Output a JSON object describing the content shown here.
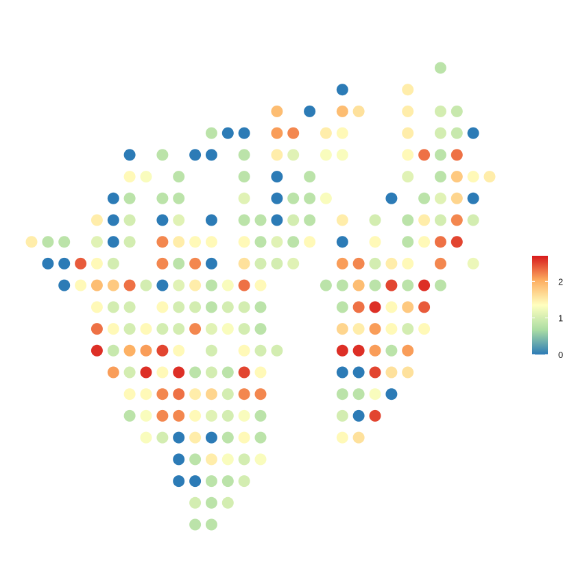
{
  "chart_data": {
    "type": "scatter",
    "title": "",
    "xlabel": "",
    "ylabel": "",
    "grid": false,
    "legend_position": "right",
    "color_scale": {
      "name": "",
      "min": 0,
      "max": 2.7,
      "ticks": [
        0,
        1,
        2
      ],
      "tick_labels": [
        "0",
        "1",
        "2"
      ],
      "stops": [
        "#2C7BB6",
        "#ABDDA4",
        "#FFFFBF",
        "#FDAE61",
        "#D7191C"
      ]
    },
    "xlim": [
      -6,
      26
    ],
    "ylim": [
      -13,
      8.5
    ],
    "points": [
      [
        22,
        7.8,
        0.8
      ],
      [
        16,
        6.8,
        0
      ],
      [
        20,
        6.8,
        1.5
      ],
      [
        12,
        5.8,
        1.9
      ],
      [
        14,
        5.8,
        0
      ],
      [
        16,
        5.8,
        1.9
      ],
      [
        17,
        5.8,
        1.6
      ],
      [
        20,
        5.8,
        1.5
      ],
      [
        22,
        5.8,
        1.0
      ],
      [
        23,
        5.8,
        0.9
      ],
      [
        8,
        4.8,
        0.8
      ],
      [
        9,
        4.8,
        0
      ],
      [
        10,
        4.8,
        0
      ],
      [
        12,
        4.8,
        2.1
      ],
      [
        13,
        4.8,
        2.2
      ],
      [
        15,
        4.8,
        1.5
      ],
      [
        16,
        4.8,
        1.4
      ],
      [
        20,
        4.8,
        1.5
      ],
      [
        22,
        4.8,
        1.0
      ],
      [
        23,
        4.8,
        0.9
      ],
      [
        24,
        4.8,
        0
      ],
      [
        3,
        3.8,
        0
      ],
      [
        5,
        3.8,
        0.8
      ],
      [
        7,
        3.8,
        0
      ],
      [
        8,
        3.8,
        0
      ],
      [
        10,
        3.8,
        0.8
      ],
      [
        12,
        3.8,
        1.5
      ],
      [
        13,
        3.8,
        1.1
      ],
      [
        15,
        3.8,
        1.3
      ],
      [
        16,
        3.8,
        1.3
      ],
      [
        20,
        3.8,
        1.4
      ],
      [
        21,
        3.8,
        2.3
      ],
      [
        22,
        3.8,
        0.8
      ],
      [
        23,
        3.8,
        2.3
      ],
      [
        3,
        2.8,
        1.4
      ],
      [
        4,
        2.8,
        1.3
      ],
      [
        6,
        2.8,
        0.8
      ],
      [
        10,
        2.8,
        0.8
      ],
      [
        12,
        2.8,
        0
      ],
      [
        14,
        2.8,
        0.8
      ],
      [
        20,
        2.8,
        1.1
      ],
      [
        22,
        2.8,
        0.8
      ],
      [
        23,
        2.8,
        1.8
      ],
      [
        24,
        2.8,
        1.4
      ],
      [
        25,
        2.8,
        1.5
      ],
      [
        2,
        1.8,
        0
      ],
      [
        3,
        1.8,
        0.8
      ],
      [
        5,
        1.8,
        0.8
      ],
      [
        6,
        1.8,
        0.8
      ],
      [
        10,
        1.8,
        1.1
      ],
      [
        12,
        1.8,
        0
      ],
      [
        13,
        1.8,
        0.8
      ],
      [
        14,
        1.8,
        0.8
      ],
      [
        15,
        1.8,
        1.3
      ],
      [
        19,
        1.8,
        0
      ],
      [
        21,
        1.8,
        0.8
      ],
      [
        22,
        1.8,
        1.1
      ],
      [
        23,
        1.8,
        1.7
      ],
      [
        24,
        1.8,
        0
      ],
      [
        1,
        0.8,
        1.5
      ],
      [
        2,
        0.8,
        0
      ],
      [
        3,
        0.8,
        1.0
      ],
      [
        5,
        0.8,
        0
      ],
      [
        6,
        0.8,
        1.1
      ],
      [
        8,
        0.8,
        0
      ],
      [
        10,
        0.8,
        0.8
      ],
      [
        11,
        0.8,
        0.8
      ],
      [
        12,
        0.8,
        0
      ],
      [
        13,
        0.8,
        1.0
      ],
      [
        14,
        0.8,
        0.8
      ],
      [
        16,
        0.8,
        1.5
      ],
      [
        18,
        0.8,
        1.0
      ],
      [
        20,
        0.8,
        0.8
      ],
      [
        21,
        0.8,
        1.5
      ],
      [
        22,
        0.8,
        1.0
      ],
      [
        23,
        0.8,
        2.2
      ],
      [
        24,
        0.8,
        1.0
      ],
      [
        -3,
        -0.2,
        1.5
      ],
      [
        -2,
        -0.2,
        0.8
      ],
      [
        -1,
        -0.2,
        0.8
      ],
      [
        1,
        -0.2,
        1.1
      ],
      [
        2,
        -0.2,
        0
      ],
      [
        3,
        -0.2,
        1.0
      ],
      [
        5,
        -0.2,
        2.2
      ],
      [
        6,
        -0.2,
        1.5
      ],
      [
        7,
        -0.2,
        1.4
      ],
      [
        8,
        -0.2,
        1.4
      ],
      [
        10,
        -0.2,
        1.4
      ],
      [
        11,
        -0.2,
        0.8
      ],
      [
        12,
        -0.2,
        1.1
      ],
      [
        13,
        -0.2,
        0.8
      ],
      [
        14,
        -0.2,
        1.4
      ],
      [
        16,
        -0.2,
        0
      ],
      [
        18,
        -0.2,
        1.4
      ],
      [
        20,
        -0.2,
        0.8
      ],
      [
        21,
        -0.2,
        1.4
      ],
      [
        22,
        -0.2,
        2.3
      ],
      [
        23,
        -0.2,
        2.5
      ],
      [
        -2,
        -1.2,
        0
      ],
      [
        -1,
        -1.2,
        0
      ],
      [
        0,
        -1.2,
        2.4
      ],
      [
        1,
        -1.2,
        1.4
      ],
      [
        2,
        -1.2,
        1.0
      ],
      [
        5,
        -1.2,
        2.2
      ],
      [
        6,
        -1.2,
        0.8
      ],
      [
        7,
        -1.2,
        2.2
      ],
      [
        8,
        -1.2,
        0
      ],
      [
        10,
        -1.2,
        1.6
      ],
      [
        11,
        -1.2,
        1.0
      ],
      [
        12,
        -1.2,
        1.0
      ],
      [
        13,
        -1.2,
        1.1
      ],
      [
        16,
        -1.2,
        2.1
      ],
      [
        17,
        -1.2,
        2.2
      ],
      [
        18,
        -1.2,
        1.0
      ],
      [
        19,
        -1.2,
        1.5
      ],
      [
        20,
        -1.2,
        1.4
      ],
      [
        22,
        -1.2,
        2.2
      ],
      [
        24,
        -1.2,
        1.2
      ],
      [
        -1,
        -2.2,
        0
      ],
      [
        0,
        -2.2,
        1.4
      ],
      [
        1,
        -2.2,
        1.9
      ],
      [
        2,
        -2.2,
        1.8
      ],
      [
        3,
        -2.2,
        2.3
      ],
      [
        4,
        -2.2,
        1.0
      ],
      [
        5,
        -2.2,
        0
      ],
      [
        6,
        -2.2,
        1.1
      ],
      [
        7,
        -2.2,
        1.5
      ],
      [
        8,
        -2.2,
        0.8
      ],
      [
        9,
        -2.2,
        1.3
      ],
      [
        10,
        -2.2,
        2.3
      ],
      [
        11,
        -2.2,
        1.4
      ],
      [
        15,
        -2.2,
        0.8
      ],
      [
        16,
        -2.2,
        0.8
      ],
      [
        17,
        -2.2,
        1.9
      ],
      [
        18,
        -2.2,
        0.8
      ],
      [
        19,
        -2.2,
        2.5
      ],
      [
        20,
        -2.2,
        0.8
      ],
      [
        21,
        -2.2,
        2.6
      ],
      [
        22,
        -2.2,
        0.8
      ],
      [
        1,
        -3.2,
        1.4
      ],
      [
        2,
        -3.2,
        1.0
      ],
      [
        3,
        -3.2,
        1.0
      ],
      [
        5,
        -3.2,
        1.4
      ],
      [
        6,
        -3.2,
        1.0
      ],
      [
        7,
        -3.2,
        1.0
      ],
      [
        8,
        -3.2,
        0.8
      ],
      [
        9,
        -3.2,
        1.0
      ],
      [
        10,
        -3.2,
        1.0
      ],
      [
        11,
        -3.2,
        0.8
      ],
      [
        16,
        -3.2,
        0.8
      ],
      [
        17,
        -3.2,
        2.3
      ],
      [
        18,
        -3.2,
        2.6
      ],
      [
        19,
        -3.2,
        1.4
      ],
      [
        20,
        -3.2,
        1.8
      ],
      [
        21,
        -3.2,
        2.4
      ],
      [
        1,
        -4.2,
        2.3
      ],
      [
        2,
        -4.2,
        1.4
      ],
      [
        3,
        -4.2,
        1.0
      ],
      [
        4,
        -4.2,
        1.4
      ],
      [
        5,
        -4.2,
        1.0
      ],
      [
        6,
        -4.2,
        1.0
      ],
      [
        7,
        -4.2,
        2.2
      ],
      [
        8,
        -4.2,
        1.1
      ],
      [
        9,
        -4.2,
        1.3
      ],
      [
        10,
        -4.2,
        1.0
      ],
      [
        11,
        -4.2,
        0.8
      ],
      [
        16,
        -4.2,
        1.7
      ],
      [
        17,
        -4.2,
        1.5
      ],
      [
        18,
        -4.2,
        2.1
      ],
      [
        19,
        -4.2,
        1.4
      ],
      [
        20,
        -4.2,
        1.0
      ],
      [
        21,
        -4.2,
        1.4
      ],
      [
        1,
        -5.2,
        2.6
      ],
      [
        2,
        -5.2,
        0.9
      ],
      [
        3,
        -5.2,
        2.0
      ],
      [
        4,
        -5.2,
        2.1
      ],
      [
        5,
        -5.2,
        2.5
      ],
      [
        6,
        -5.2,
        1.4
      ],
      [
        8,
        -5.2,
        1.0
      ],
      [
        10,
        -5.2,
        1.4
      ],
      [
        11,
        -5.2,
        1.0
      ],
      [
        12,
        -5.2,
        1.0
      ],
      [
        16,
        -5.2,
        2.6
      ],
      [
        17,
        -5.2,
        2.6
      ],
      [
        18,
        -5.2,
        2.1
      ],
      [
        19,
        -5.2,
        0.8
      ],
      [
        20,
        -5.2,
        2.1
      ],
      [
        2,
        -6.2,
        2.1
      ],
      [
        3,
        -6.2,
        1.0
      ],
      [
        4,
        -6.2,
        2.6
      ],
      [
        5,
        -6.2,
        1.4
      ],
      [
        6,
        -6.2,
        2.6
      ],
      [
        7,
        -6.2,
        0.8
      ],
      [
        8,
        -6.2,
        1.0
      ],
      [
        9,
        -6.2,
        0.8
      ],
      [
        10,
        -6.2,
        2.5
      ],
      [
        11,
        -6.2,
        1.4
      ],
      [
        16,
        -6.2,
        0
      ],
      [
        17,
        -6.2,
        0
      ],
      [
        18,
        -6.2,
        2.5
      ],
      [
        19,
        -6.2,
        1.6
      ],
      [
        20,
        -6.2,
        1.6
      ],
      [
        3,
        -7.2,
        1.4
      ],
      [
        4,
        -7.2,
        1.4
      ],
      [
        5,
        -7.2,
        2.2
      ],
      [
        6,
        -7.2,
        2.3
      ],
      [
        7,
        -7.2,
        1.5
      ],
      [
        8,
        -7.2,
        1.7
      ],
      [
        9,
        -7.2,
        1.0
      ],
      [
        10,
        -7.2,
        2.2
      ],
      [
        11,
        -7.2,
        2.2
      ],
      [
        16,
        -7.2,
        0.8
      ],
      [
        17,
        -7.2,
        0.8
      ],
      [
        18,
        -7.2,
        1.3
      ],
      [
        19,
        -7.2,
        0
      ],
      [
        3,
        -8.2,
        0.8
      ],
      [
        4,
        -8.2,
        1.3
      ],
      [
        5,
        -8.2,
        2.2
      ],
      [
        6,
        -8.2,
        2.2
      ],
      [
        7,
        -8.2,
        1.4
      ],
      [
        8,
        -8.2,
        1.1
      ],
      [
        9,
        -8.2,
        1.0
      ],
      [
        10,
        -8.2,
        1.3
      ],
      [
        11,
        -8.2,
        0.8
      ],
      [
        16,
        -8.2,
        1.0
      ],
      [
        17,
        -8.2,
        0
      ],
      [
        18,
        -8.2,
        2.5
      ],
      [
        4,
        -9.2,
        1.3
      ],
      [
        5,
        -9.2,
        1.0
      ],
      [
        6,
        -9.2,
        0
      ],
      [
        7,
        -9.2,
        1.5
      ],
      [
        8,
        -9.2,
        0
      ],
      [
        9,
        -9.2,
        0.8
      ],
      [
        10,
        -9.2,
        1.4
      ],
      [
        11,
        -9.2,
        0.8
      ],
      [
        16,
        -9.2,
        1.4
      ],
      [
        17,
        -9.2,
        1.6
      ],
      [
        6,
        -10.2,
        0
      ],
      [
        7,
        -10.2,
        0.8
      ],
      [
        8,
        -10.2,
        1.5
      ],
      [
        9,
        -10.2,
        1.3
      ],
      [
        10,
        -10.2,
        1.0
      ],
      [
        11,
        -10.2,
        1.3
      ],
      [
        6,
        -11.2,
        0
      ],
      [
        7,
        -11.2,
        0
      ],
      [
        8,
        -11.2,
        0.8
      ],
      [
        9,
        -11.2,
        0.8
      ],
      [
        10,
        -11.2,
        1.0
      ],
      [
        7,
        -12.2,
        1.0
      ],
      [
        8,
        -12.2,
        0.8
      ],
      [
        9,
        -12.2,
        1.0
      ],
      [
        7,
        -13.2,
        0.8
      ],
      [
        8,
        -13.2,
        0.8
      ]
    ]
  }
}
